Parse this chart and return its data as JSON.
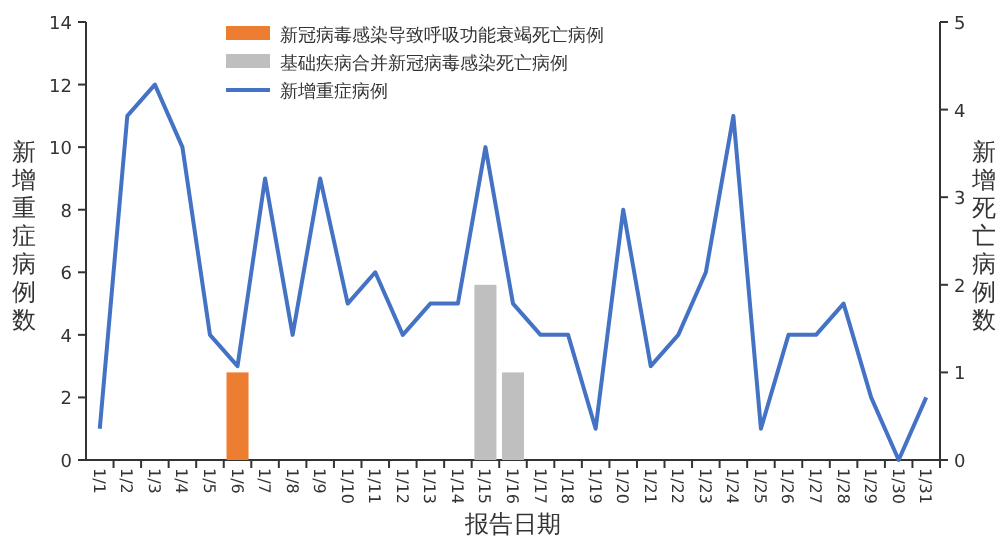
{
  "chart_data": {
    "type": "bar",
    "legend": "top",
    "xlabel": "报告日期",
    "ylabel": "新增重症病例数",
    "y2label": "新增死亡病例数",
    "categories": [
      "1/1",
      "1/2",
      "1/3",
      "1/4",
      "1/5",
      "1/6",
      "1/7",
      "1/8",
      "1/9",
      "1/10",
      "1/11",
      "1/12",
      "1/13",
      "1/14",
      "1/15",
      "1/16",
      "1/17",
      "1/18",
      "1/19",
      "1/20",
      "1/21",
      "1/22",
      "1/23",
      "1/24",
      "1/25",
      "1/26",
      "1/27",
      "1/28",
      "1/29",
      "1/30",
      "1/31"
    ],
    "ylim": [
      0,
      14
    ],
    "yticks": [
      0,
      2,
      4,
      6,
      8,
      10,
      12,
      14
    ],
    "y2lim": [
      0,
      5
    ],
    "y2ticks": [
      0,
      1,
      2,
      3,
      4,
      5
    ],
    "series": [
      {
        "name": "新冠病毒感染导致呼吸功能衰竭死亡病例",
        "axis": "y2",
        "color": "#ed7d31",
        "values": [
          0,
          0,
          0,
          0,
          0,
          1,
          0,
          0,
          0,
          0,
          0,
          0,
          0,
          0,
          0,
          0,
          0,
          0,
          0,
          0,
          0,
          0,
          0,
          0,
          0,
          0,
          0,
          0,
          0,
          0,
          0
        ]
      },
      {
        "name": "基础疾病合并新冠病毒感染死亡病例",
        "axis": "y2",
        "color": "#bfbfbf",
        "values": [
          0,
          0,
          0,
          0,
          0,
          0,
          0,
          0,
          0,
          0,
          0,
          0,
          0,
          0,
          2,
          1,
          0,
          0,
          0,
          0,
          0,
          0,
          0,
          0,
          0,
          0,
          0,
          0,
          0,
          0,
          0
        ]
      },
      {
        "name": "新增重症病例",
        "type": "line",
        "color": "#4472c4",
        "values": [
          1,
          11,
          12,
          10,
          4,
          3,
          9,
          4,
          9,
          5,
          6,
          4,
          5,
          5,
          10,
          5,
          4,
          4,
          1,
          8,
          3,
          4,
          6,
          11,
          1,
          4,
          4,
          5,
          2,
          0,
          2
        ]
      }
    ]
  }
}
